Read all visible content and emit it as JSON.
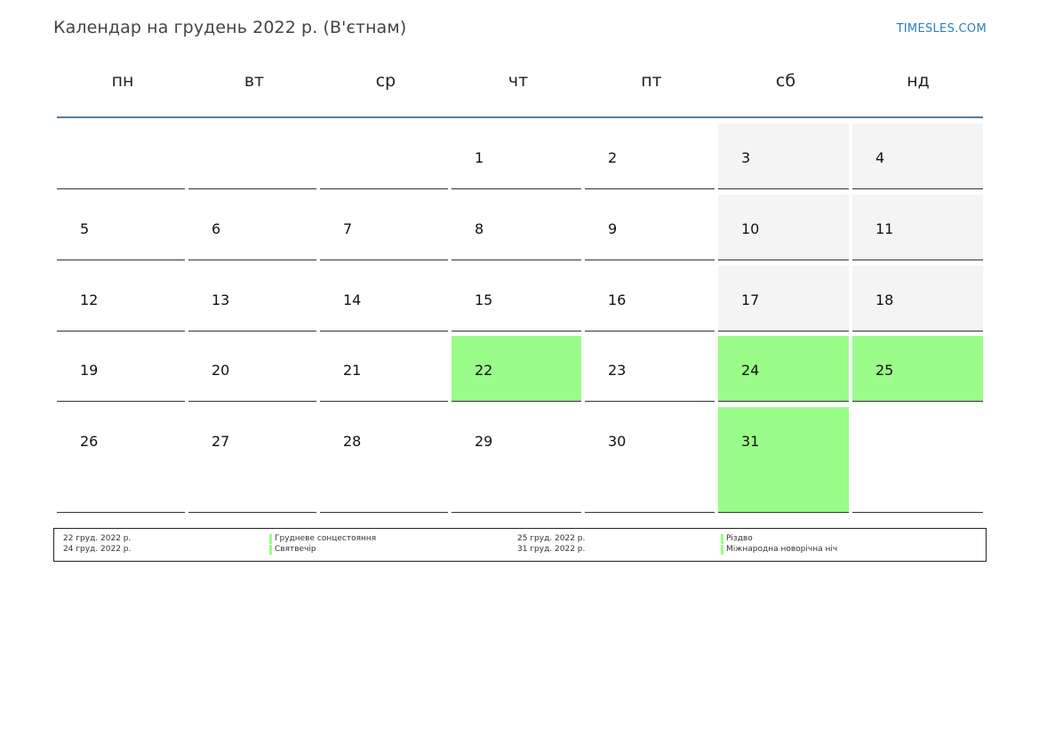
{
  "header": {
    "title": "Календар на грудень 2022 р. (В'єтнам)",
    "brand": "TIMESLES.COM"
  },
  "weekdays": [
    "пн",
    "вт",
    "ср",
    "чт",
    "пт",
    "сб",
    "нд"
  ],
  "colors": {
    "holiday": "#9afc89",
    "weekend": "#f4f4f4",
    "header_rule": "#5b7a9c",
    "brand": "#2c7fbf"
  },
  "weeks": [
    [
      null,
      null,
      null,
      {
        "day": "1"
      },
      {
        "day": "2"
      },
      {
        "day": "3",
        "weekend": true
      },
      {
        "day": "4",
        "weekend": true
      }
    ],
    [
      {
        "day": "5"
      },
      {
        "day": "6"
      },
      {
        "day": "7"
      },
      {
        "day": "8"
      },
      {
        "day": "9"
      },
      {
        "day": "10",
        "weekend": true
      },
      {
        "day": "11",
        "weekend": true
      }
    ],
    [
      {
        "day": "12"
      },
      {
        "day": "13"
      },
      {
        "day": "14"
      },
      {
        "day": "15"
      },
      {
        "day": "16"
      },
      {
        "day": "17",
        "weekend": true
      },
      {
        "day": "18",
        "weekend": true
      }
    ],
    [
      {
        "day": "19"
      },
      {
        "day": "20"
      },
      {
        "day": "21"
      },
      {
        "day": "22",
        "holiday": true
      },
      {
        "day": "23"
      },
      {
        "day": "24",
        "weekend": true,
        "holiday": true
      },
      {
        "day": "25",
        "weekend": true,
        "holiday": true
      }
    ],
    [
      {
        "day": "26"
      },
      {
        "day": "27"
      },
      {
        "day": "28"
      },
      {
        "day": "29"
      },
      {
        "day": "30"
      },
      {
        "day": "31",
        "weekend": true,
        "holiday": true
      },
      null
    ]
  ],
  "legend": [
    {
      "date": "22 груд. 2022 р.",
      "name": "Грудневе сонцестояння"
    },
    {
      "date": "24 груд. 2022 р.",
      "name": "Святвечір"
    },
    {
      "date": "25 груд. 2022 р.",
      "name": "Різдво"
    },
    {
      "date": "31 груд. 2022 р.",
      "name": "Міжнародна новорічна ніч"
    }
  ]
}
